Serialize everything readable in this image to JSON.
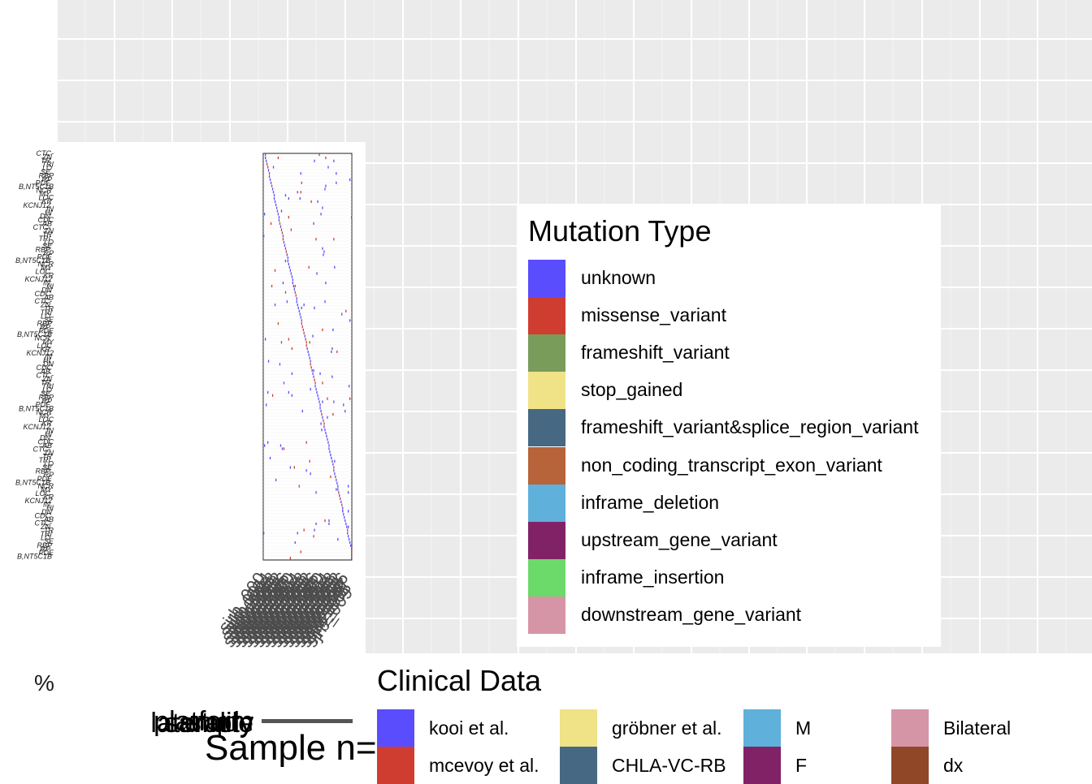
{
  "chart_data": {
    "type": "heatmap",
    "title": "",
    "xlabel": "",
    "ylabel": "",
    "mutation_legend": {
      "title": "Mutation Type",
      "entries": [
        {
          "label": "unknown",
          "color": "#5a4dfd"
        },
        {
          "label": "missense_variant",
          "color": "#cf3d31"
        },
        {
          "label": "frameshift_variant",
          "color": "#799c5a"
        },
        {
          "label": "stop_gained",
          "color": "#f0e287"
        },
        {
          "label": "frameshift_variant&splice_region_variant",
          "color": "#466882"
        },
        {
          "label": "non_coding_transcript_exon_variant",
          "color": "#b7643a"
        },
        {
          "label": "inframe_deletion",
          "color": "#5fb0db"
        },
        {
          "label": "upstream_gene_variant",
          "color": "#812267"
        },
        {
          "label": "inframe_insertion",
          "color": "#6cd96b"
        },
        {
          "label": "downstream_gene_variant",
          "color": "#d695a6"
        }
      ]
    },
    "clinical_legend": {
      "title": "Clinical Data",
      "entries": [
        {
          "label": "kooi et al.",
          "color": "#5a4dfd"
        },
        {
          "label": "mcevoy et al.",
          "color": "#cf3d31"
        },
        {
          "label": "gröbner et al.",
          "color": "#f0e287"
        },
        {
          "label": "CHLA-VC-RB",
          "color": "#466882"
        },
        {
          "label": "M",
          "color": "#5fb0db"
        },
        {
          "label": "F",
          "color": "#812267"
        },
        {
          "label": "Bilateral",
          "color": "#d695a6"
        },
        {
          "label": "dx",
          "color": "#8f4727"
        }
      ]
    },
    "gene_labels": [
      "CTC-",
      "ZN",
      "TR",
      "TRI",
      "LO",
      "SE",
      "RBP",
      "RP",
      "PDE",
      "B,NT5C1B",
      "NCR",
      "MY",
      "LOC",
      "KR",
      "KCNJ12",
      "IN",
      "HI",
      "DN",
      "CDC",
      "AB"
    ],
    "track_labels": [
      "sample",
      "platform",
      "study",
      "laterality"
    ],
    "percent_label": "%",
    "sample_n_label": "Sample n="
  }
}
